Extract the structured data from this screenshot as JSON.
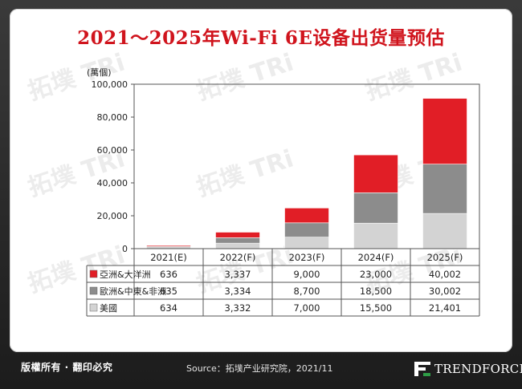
{
  "title": "2021～2025年Wi-Fi 6E设备出货量预估",
  "watermark_text": "拓墣 TRi",
  "footer": {
    "copyright": "版權所有 · 翻印必究",
    "source": "Source：拓墣产业研究院，2021/11",
    "brand": "TRENDFORCE"
  },
  "colors": {
    "asia": "#e11e26",
    "europe": "#8c8c8c",
    "us": "#d3d3d3",
    "accent": "#d0141d"
  },
  "chart_data": {
    "type": "bar",
    "stacked": true,
    "unit_label": "(萬個)",
    "categories": [
      "2021(E)",
      "2022(F)",
      "2023(F)",
      "2024(F)",
      "2025(F)"
    ],
    "ylim": [
      0,
      100000
    ],
    "yticks": [
      "0",
      "20,000",
      "40,000",
      "60,000",
      "80,000",
      "100,000"
    ],
    "ytick_values": [
      0,
      20000,
      40000,
      60000,
      80000,
      100000
    ],
    "series": [
      {
        "name": "美國",
        "values": [
          634,
          3332,
          7000,
          15500,
          21401
        ],
        "labels": [
          "634",
          "3,332",
          "7,000",
          "15,500",
          "21,401"
        ],
        "color": "#d3d3d3"
      },
      {
        "name": "歐洲&中東&非洲",
        "values": [
          635,
          3334,
          8700,
          18500,
          30002
        ],
        "labels": [
          "635",
          "3,334",
          "8,700",
          "18,500",
          "30,002"
        ],
        "color": "#8c8c8c"
      },
      {
        "name": "亞洲&大洋洲",
        "values": [
          636,
          3337,
          9000,
          23000,
          40002
        ],
        "labels": [
          "636",
          "3,337",
          "9,000",
          "23,000",
          "40,002"
        ],
        "color": "#e11e26"
      }
    ],
    "table_order": [
      "亞洲&大洋洲",
      "歐洲&中東&非洲",
      "美國"
    ]
  }
}
